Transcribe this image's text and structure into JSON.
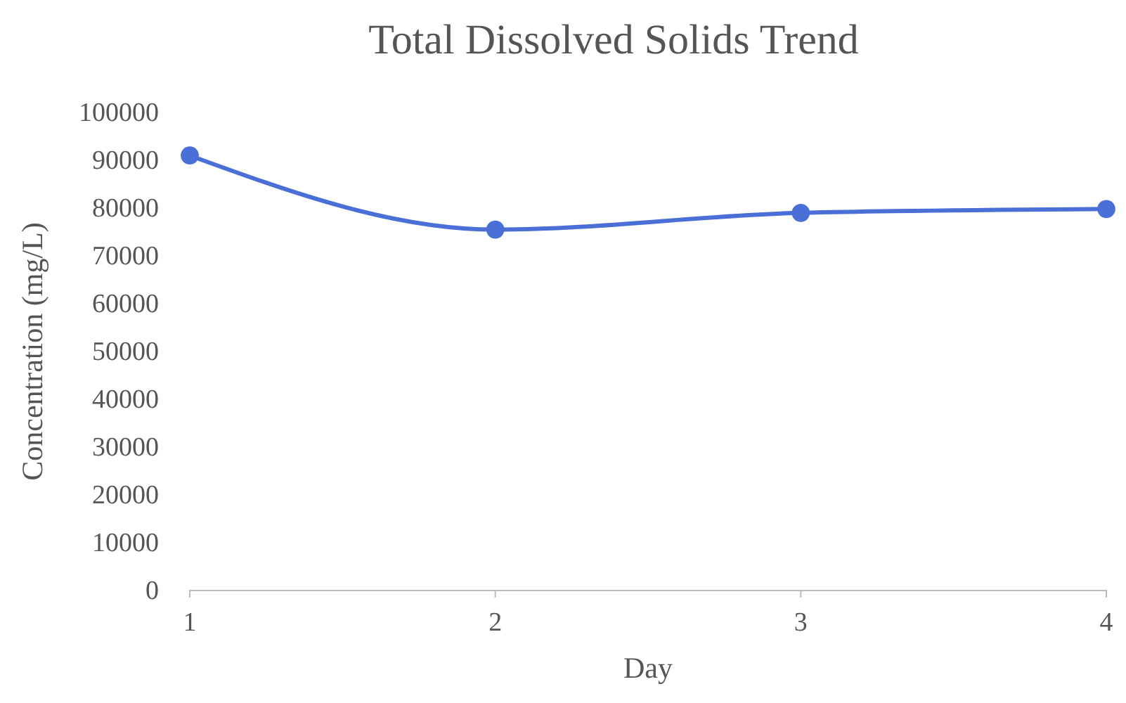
{
  "chart_data": {
    "type": "line",
    "title": "Total Dissolved Solids Trend",
    "xlabel": "Day",
    "ylabel": "Concentration (mg/L)",
    "categories": [
      "1",
      "2",
      "3",
      "4"
    ],
    "series": [
      {
        "color": "#4a6fd6",
        "values": [
          91000,
          75500,
          79000,
          79800
        ]
      }
    ],
    "ylim": [
      0,
      100000
    ],
    "yticks": [
      0,
      10000,
      20000,
      30000,
      40000,
      50000,
      60000,
      70000,
      80000,
      90000,
      100000
    ],
    "grid": false,
    "marker": "circle",
    "line_style": "solid"
  }
}
